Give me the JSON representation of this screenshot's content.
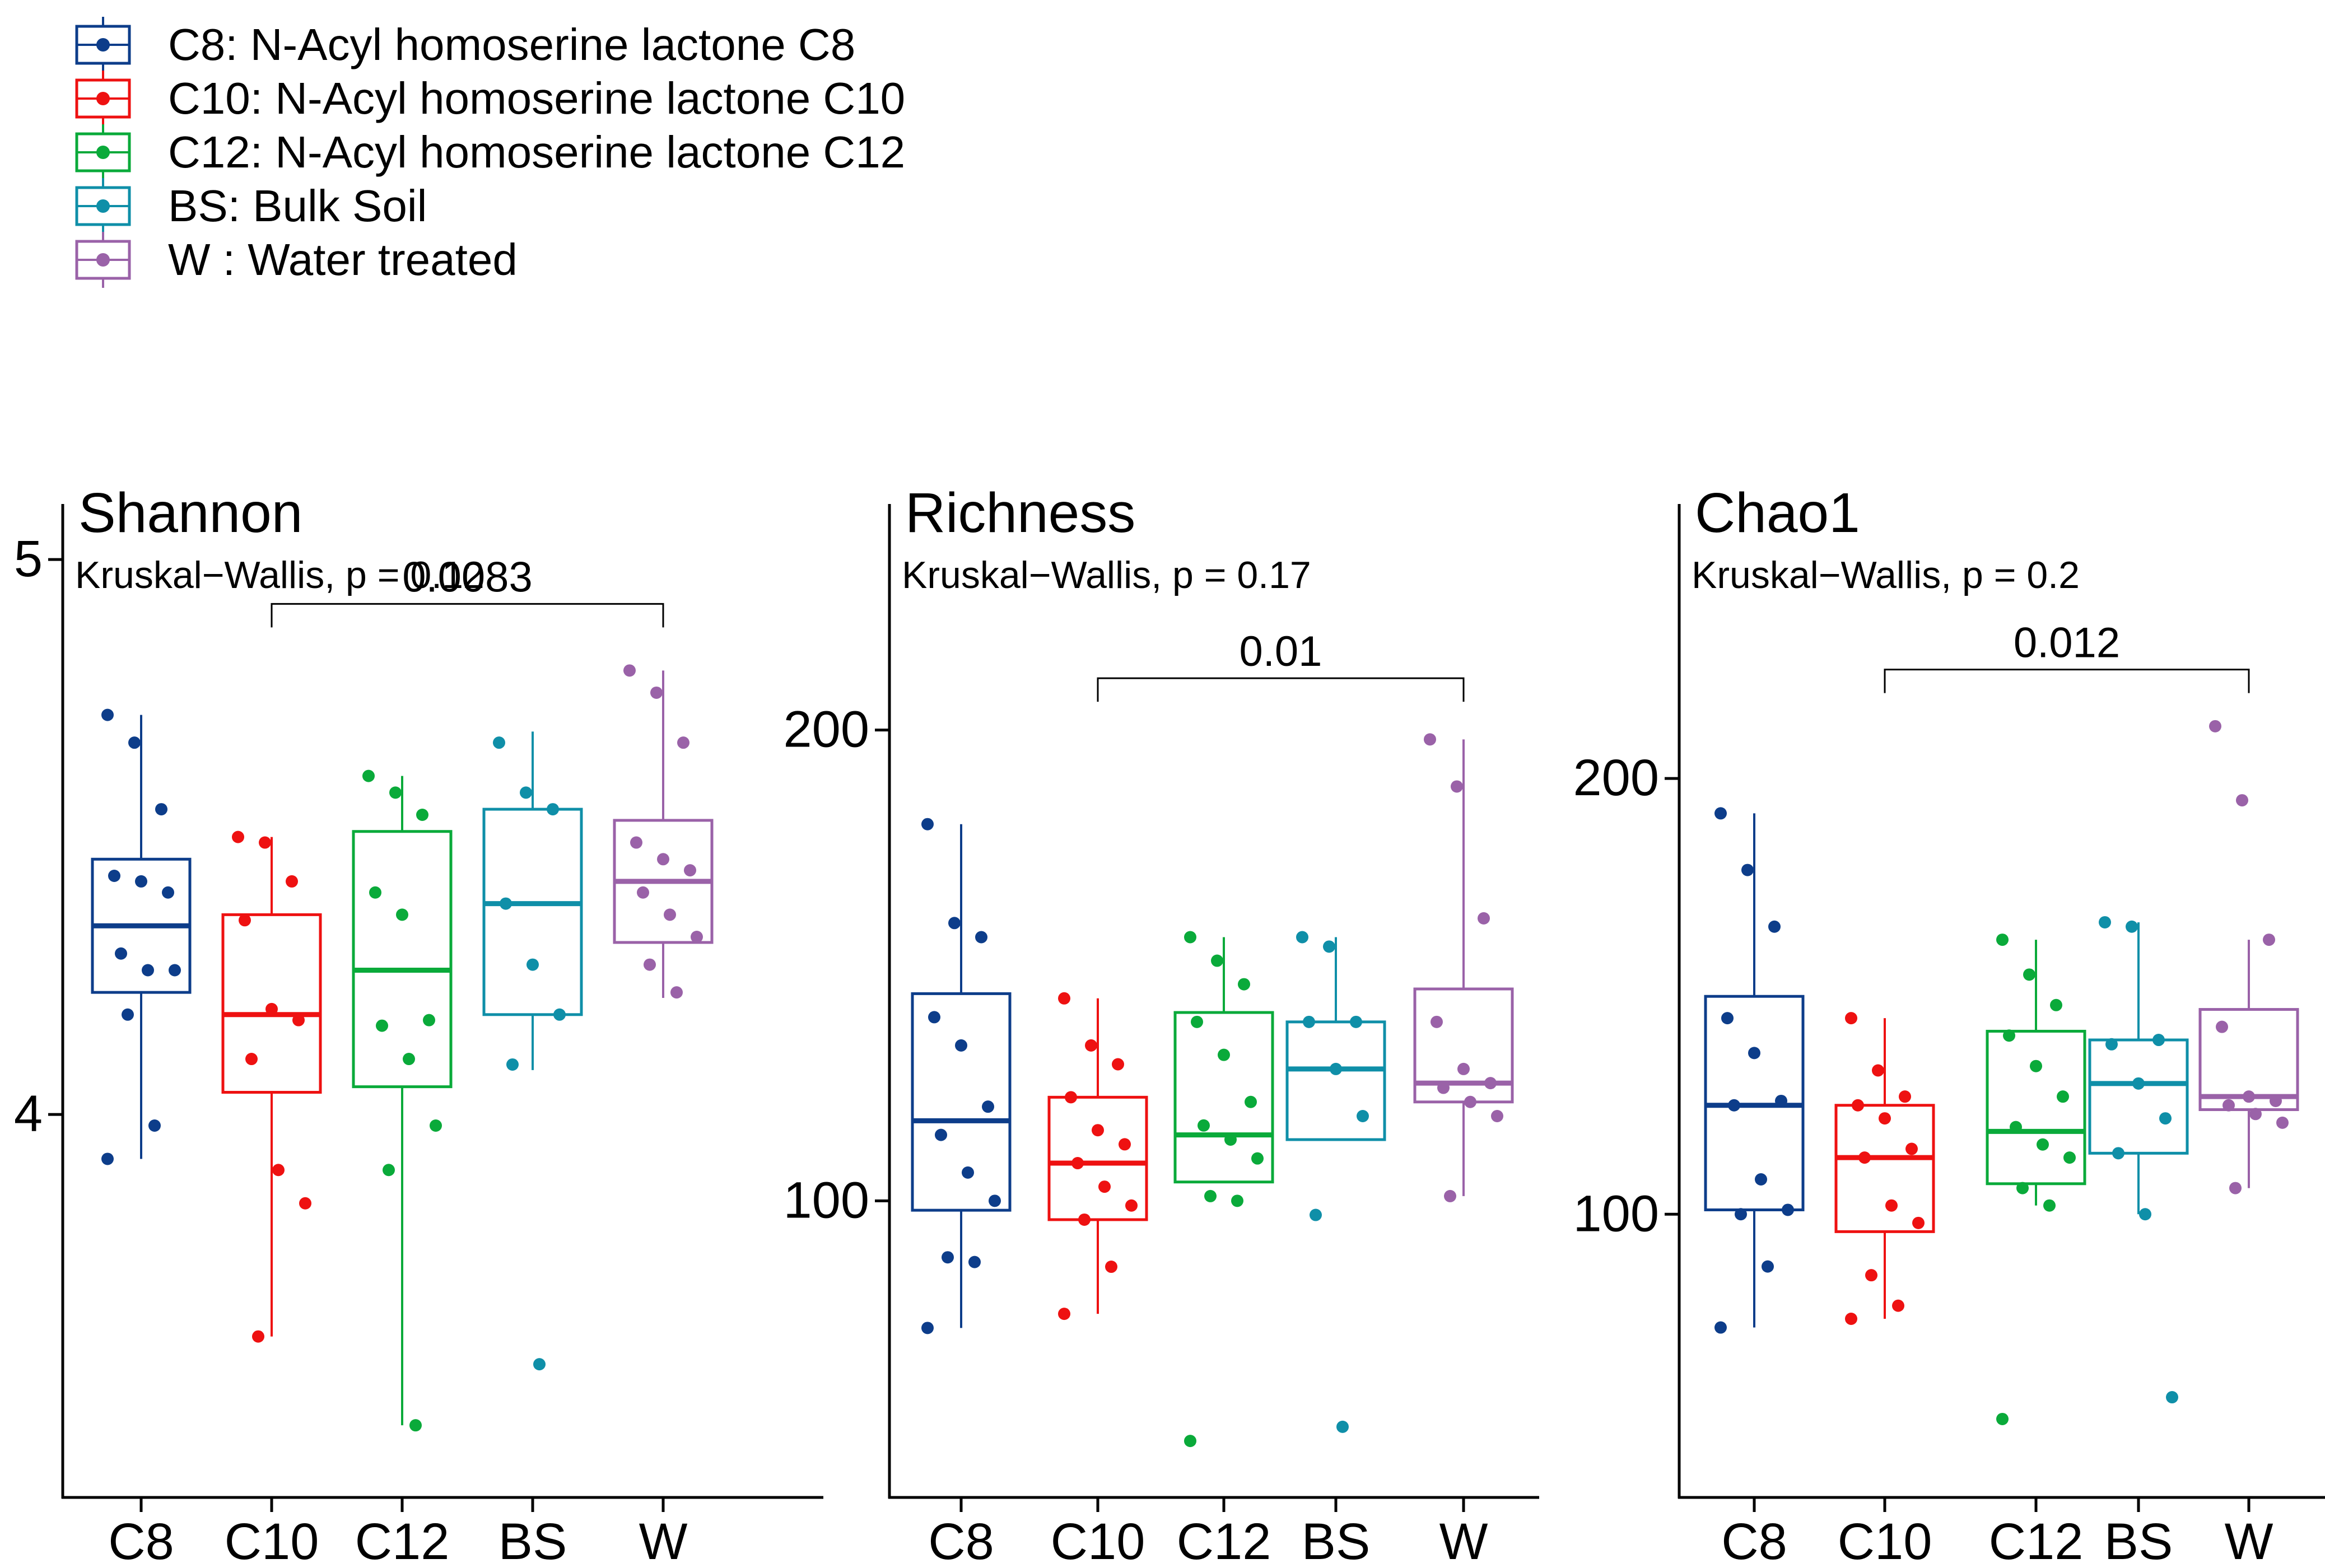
{
  "legend": {
    "entries": [
      {
        "key": "C8",
        "label": "C8: N-Acyl homoserine lactone C8",
        "color": "#0d3d8a"
      },
      {
        "key": "C10",
        "label": "C10: N-Acyl homoserine lactone C10",
        "color": "#ee1111"
      },
      {
        "key": "C12",
        "label": "C12: N-Acyl homoserine lactone C12",
        "color": "#0aaa3a"
      },
      {
        "key": "BS",
        "label": "BS: Bulk Soil",
        "color": "#0f8fa8"
      },
      {
        "key": "W",
        "label": "W  : Water treated",
        "color": "#9a62a8"
      }
    ]
  },
  "chart_data": [
    {
      "type": "box",
      "title": "Shannon",
      "subtitle": "Kruskal−Wallis, p = 0.12",
      "categories": [
        "C8",
        "C10",
        "C12",
        "BS",
        "W"
      ],
      "ylim": [
        3.31,
        5.1
      ],
      "yticks": [
        4,
        5
      ],
      "ytick_labels": [
        "4",
        "5"
      ],
      "comparison": {
        "from": "C10",
        "to": "W",
        "label": "0.0083",
        "y": 4.92
      },
      "boxes": [
        {
          "q1": 4.22,
          "median": 4.34,
          "q3": 4.46,
          "whisker_low": 3.92,
          "whisker_high": 4.72
        },
        {
          "q1": 4.04,
          "median": 4.18,
          "q3": 4.36,
          "whisker_low": 3.6,
          "whisker_high": 4.5
        },
        {
          "q1": 4.05,
          "median": 4.26,
          "q3": 4.51,
          "whisker_low": 3.44,
          "whisker_high": 4.61
        },
        {
          "q1": 4.18,
          "median": 4.38,
          "q3": 4.55,
          "whisker_low": 4.08,
          "whisker_high": 4.69
        },
        {
          "q1": 4.31,
          "median": 4.42,
          "q3": 4.53,
          "whisker_low": 4.21,
          "whisker_high": 4.8
        }
      ],
      "points": [
        [
          4.72,
          4.67,
          4.55,
          4.43,
          4.42,
          4.4,
          4.29,
          4.26,
          4.26,
          4.18,
          3.98,
          3.92
        ],
        [
          4.5,
          4.49,
          4.42,
          4.35,
          4.19,
          4.17,
          4.1,
          3.9,
          3.84,
          3.6
        ],
        [
          4.61,
          4.58,
          4.54,
          4.4,
          4.36,
          4.17,
          4.16,
          4.1,
          3.98,
          3.9,
          3.44
        ],
        [
          4.67,
          4.58,
          4.55,
          4.38,
          4.27,
          4.18,
          4.09,
          3.55
        ],
        [
          4.8,
          4.76,
          4.67,
          4.49,
          4.46,
          4.44,
          4.4,
          4.36,
          4.32,
          4.27,
          4.22
        ]
      ]
    },
    {
      "type": "box",
      "title": "Richness",
      "subtitle": "Kruskal−Wallis, p = 0.17",
      "categories": [
        "C8",
        "C10",
        "C12",
        "BS",
        "W"
      ],
      "ylim": [
        37,
        248
      ],
      "yticks": [
        100,
        200
      ],
      "ytick_labels": [
        "100",
        "200"
      ],
      "comparison": {
        "from": "C10",
        "to": "W",
        "label": "0.01",
        "y": 211
      },
      "boxes": [
        {
          "q1": 98,
          "median": 117,
          "q3": 144,
          "whisker_low": 73,
          "whisker_high": 180
        },
        {
          "q1": 96,
          "median": 108,
          "q3": 122,
          "whisker_low": 76,
          "whisker_high": 143
        },
        {
          "q1": 104,
          "median": 114,
          "q3": 140,
          "whisker_low": 104,
          "whisker_high": 156
        },
        {
          "q1": 113,
          "median": 128,
          "q3": 138,
          "whisker_low": 113,
          "whisker_high": 156
        },
        {
          "q1": 121,
          "median": 125,
          "q3": 145,
          "whisker_low": 101,
          "whisker_high": 198
        }
      ],
      "points": [
        [
          180,
          159,
          156,
          139,
          133,
          120,
          114,
          106,
          100,
          88,
          87,
          73
        ],
        [
          143,
          133,
          129,
          122,
          115,
          112,
          108,
          103,
          99,
          96,
          86,
          76
        ],
        [
          156,
          151,
          146,
          138,
          131,
          121,
          116,
          113,
          109,
          101,
          100,
          49
        ],
        [
          156,
          154,
          138,
          138,
          128,
          118,
          97,
          52
        ],
        [
          198,
          188,
          160,
          138,
          128,
          125,
          124,
          121,
          118,
          101
        ]
      ]
    },
    {
      "type": "box",
      "title": "Chao1",
      "subtitle": "Kruskal−Wallis, p = 0.2",
      "categories": [
        "C8",
        "C10",
        "C12",
        "BS",
        "W"
      ],
      "ylim": [
        35,
        263
      ],
      "yticks": [
        100,
        200
      ],
      "ytick_labels": [
        "100",
        "200"
      ],
      "comparison": {
        "from": "C10",
        "to": "W",
        "label": "0.012",
        "y": 225
      },
      "boxes": [
        {
          "q1": 101,
          "median": 125,
          "q3": 150,
          "whisker_low": 74,
          "whisker_high": 192
        },
        {
          "q1": 96,
          "median": 113,
          "q3": 125,
          "whisker_low": 76,
          "whisker_high": 145
        },
        {
          "q1": 107,
          "median": 119,
          "q3": 142,
          "whisker_low": 102,
          "whisker_high": 163
        },
        {
          "q1": 114,
          "median": 130,
          "q3": 140,
          "whisker_low": 100,
          "whisker_high": 167
        },
        {
          "q1": 124,
          "median": 127,
          "q3": 147,
          "whisker_low": 106,
          "whisker_high": 163
        }
      ],
      "points": [
        [
          192,
          179,
          166,
          145,
          137,
          126,
          125,
          108,
          101,
          100,
          88,
          74
        ],
        [
          145,
          133,
          127,
          125,
          122,
          115,
          113,
          102,
          98,
          86,
          79,
          76
        ],
        [
          163,
          155,
          148,
          141,
          134,
          127,
          120,
          116,
          113,
          106,
          102,
          53
        ],
        [
          167,
          166,
          140,
          139,
          130,
          122,
          114,
          100,
          58
        ],
        [
          212,
          195,
          163,
          143,
          127,
          126,
          125,
          123,
          121,
          106
        ]
      ]
    }
  ]
}
